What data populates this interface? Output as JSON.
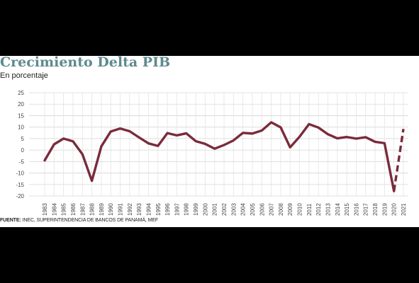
{
  "chart_data": {
    "type": "line",
    "title": "Crecimiento Delta PIB",
    "subtitle": "En porcentaje",
    "source_label": "FUENTE:",
    "source_text": " INEC, SUPERINTENDENCIA DE BANCOS DE PANAMÁ, MEF",
    "x": [
      "1983",
      "1984",
      "1985",
      "1986",
      "1987",
      "1988",
      "1989",
      "1990",
      "1991",
      "1992",
      "1993",
      "1994",
      "1995",
      "1996",
      "1997",
      "1998",
      "1999",
      "2000",
      "2001",
      "2002",
      "2003",
      "2004",
      "2005",
      "2006",
      "2007",
      "2008",
      "2009",
      "2010",
      "2011",
      "2012",
      "2013",
      "2014",
      "2015",
      "2016",
      "2017",
      "2018",
      "2019",
      "2020",
      "2021"
    ],
    "series": [
      {
        "values": [
          -4.5,
          2.5,
          5,
          3.8,
          -1.8,
          -13.4,
          1.6,
          8.1,
          9.4,
          8.2,
          5.5,
          2.9,
          1.8,
          7.4,
          6.4,
          7.3,
          3.9,
          2.7,
          0.6,
          2.2,
          4.2,
          7.5,
          7.2,
          8.5,
          12.1,
          9.9,
          1.2,
          5.8,
          11.3,
          9.8,
          6.9,
          5.1,
          5.7,
          5,
          5.6,
          3.6,
          3,
          -17.9,
          9.2
        ],
        "dashed_from_index": 37,
        "color": "#7a2b3b"
      }
    ],
    "ylim": [
      -20,
      25
    ],
    "yticks": [
      -20,
      -15,
      -10,
      -5,
      0,
      5,
      10,
      15,
      20,
      25
    ],
    "grid": true,
    "legend": "none"
  }
}
